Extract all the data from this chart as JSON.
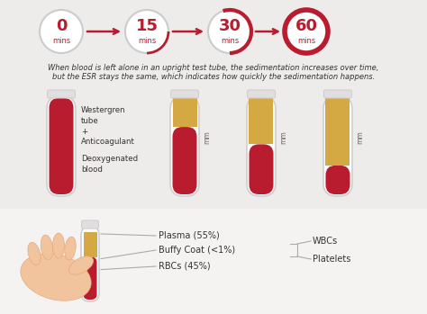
{
  "bg_color": "#eeeceb",
  "dark_red": "#b81c2e",
  "tan": "#d4a843",
  "circle_border_light": "#cccccc",
  "circle_border_dark": "#b81c2e",
  "time_labels": [
    "0",
    "15",
    "30",
    "60"
  ],
  "time_sublabels": [
    "mins",
    "mins",
    "mins",
    "mins"
  ],
  "text_line1": "When blood is left alone in an upright test tube, the sedimentation increases over time,",
  "text_line2": "but the ESR stays the same, which indicates how quickly the sedimentation happens.",
  "bottom_labels": [
    "Plasma (55%)",
    "Buffy Coat (<1%)",
    "RBCs (45%)"
  ],
  "right_labels": [
    "WBCs",
    "Platelets"
  ],
  "tube0_tan": 0.0,
  "tube0_red": 1.0,
  "tube1_tan": 0.3,
  "tube1_red": 0.7,
  "tube2_tan": 0.48,
  "tube2_red": 0.52,
  "tube3_tan": 0.7,
  "tube3_red": 0.3,
  "bottom_bg": "#f5f3f2",
  "text_color": "#333333",
  "gray_line": "#aaaaaa",
  "tube_wall_color": "#d0cece",
  "tube_cap_color": "#e0dede",
  "hand_color": "#f2c49e",
  "hand_edge": "#e8a87c"
}
